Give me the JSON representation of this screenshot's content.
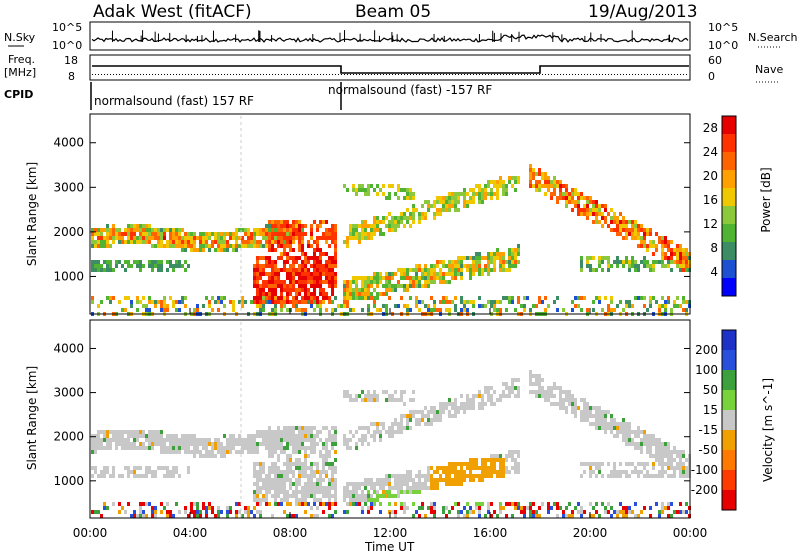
{
  "header": {
    "title": "Adak West (fitACF)",
    "beam": "Beam 05",
    "date": "19/Aug/2013"
  },
  "status_panels": {
    "nsky_label": "N.Sky",
    "nsearch_label": "N.Search",
    "noise_ticks": [
      "10^5",
      "10^0"
    ],
    "freq_label_line1": "Freq.",
    "freq_label_line2": "[MHz]",
    "freq_ticks": [
      "18",
      "8"
    ],
    "nave_label": "Nave",
    "nave_ticks": [
      "60",
      "0"
    ],
    "cpid_label": "CPID",
    "cpid_segments": [
      {
        "label": "normalsound (fast) 157 RF",
        "start_hour": 0,
        "end_hour": 10
      },
      {
        "label": "normalsound (fast) -157 RF",
        "start_hour": 10,
        "end_hour": 24
      }
    ]
  },
  "chart_data": [
    {
      "type": "heatmap",
      "title": "",
      "xlabel": "Time UT",
      "ylabel": "Slant Range [km]",
      "x_ticks": [
        "00:00",
        "04:00",
        "08:00",
        "12:00",
        "16:00",
        "20:00",
        "00:00"
      ],
      "y_ticks": [
        1000,
        2000,
        3000,
        4000
      ],
      "xlim_hours": [
        0,
        24
      ],
      "ylim_km": [
        180,
        4600
      ],
      "colorbar": {
        "label": "Power [dB]",
        "ticks": [
          4,
          8,
          12,
          16,
          20,
          24,
          28
        ],
        "range": [
          0,
          30
        ],
        "colors": [
          "#0000ff",
          "#1e50d2",
          "#3c8c64",
          "#50b432",
          "#8cc83c",
          "#f0c800",
          "#ffa000",
          "#ff6400",
          "#ff3200",
          "#e60000"
        ]
      },
      "echo_regions": [
        {
          "name": "near-range band",
          "t": [
            0,
            24
          ],
          "range_km": [
            200,
            600
          ],
          "power_db": 10
        },
        {
          "name": "morning F-region band",
          "t": [
            0,
            8
          ],
          "range_km": [
            1700,
            2200
          ],
          "power_db": 20
        },
        {
          "name": "dawn high-power patch",
          "t": [
            6.5,
            9.5
          ],
          "range_km": [
            500,
            1500
          ],
          "power_db": 28
        },
        {
          "name": "afternoon band",
          "t": [
            10,
            17
          ],
          "range_km": [
            700,
            1600
          ],
          "power_db": 16
        },
        {
          "name": "rising arc",
          "t": [
            10,
            17
          ],
          "range_km": [
            1800,
            3500
          ],
          "power_db": 14
        },
        {
          "name": "evening band",
          "t": [
            18,
            24
          ],
          "range_km": [
            1300,
            2000
          ],
          "power_db": 24
        }
      ]
    },
    {
      "type": "heatmap",
      "title": "",
      "xlabel": "Time UT",
      "ylabel": "Slant Range [km]",
      "x_ticks": [
        "00:00",
        "04:00",
        "08:00",
        "12:00",
        "16:00",
        "20:00",
        "00:00"
      ],
      "y_ticks": [
        1000,
        2000,
        3000,
        4000
      ],
      "xlim_hours": [
        0,
        24
      ],
      "ylim_km": [
        180,
        4600
      ],
      "colorbar": {
        "label": "Velocity [m s^-1]",
        "ticks": [
          200,
          100,
          50,
          15,
          -15,
          -50,
          -100,
          -200
        ],
        "colors": [
          "#1e32c8",
          "#2850dc",
          "#3ca03c",
          "#78d23c",
          "#c8c8c8",
          "#f0a000",
          "#ff7800",
          "#ff3c00",
          "#e60000"
        ]
      },
      "echo_regions": [
        {
          "name": "near-range band",
          "t": [
            0,
            24
          ],
          "range_km": [
            200,
            600
          ],
          "velocity": 0
        },
        {
          "name": "ground scatter morning",
          "t": [
            0,
            10
          ],
          "range_km": [
            1100,
            2200
          ],
          "velocity": 0
        },
        {
          "name": "receding patch",
          "t": [
            13.5,
            16.5
          ],
          "range_km": [
            800,
            1500
          ],
          "velocity": -50
        },
        {
          "name": "approaching strip",
          "t": [
            11,
            16.5
          ],
          "range_km": [
            500,
            900
          ],
          "velocity": 50
        }
      ]
    }
  ]
}
